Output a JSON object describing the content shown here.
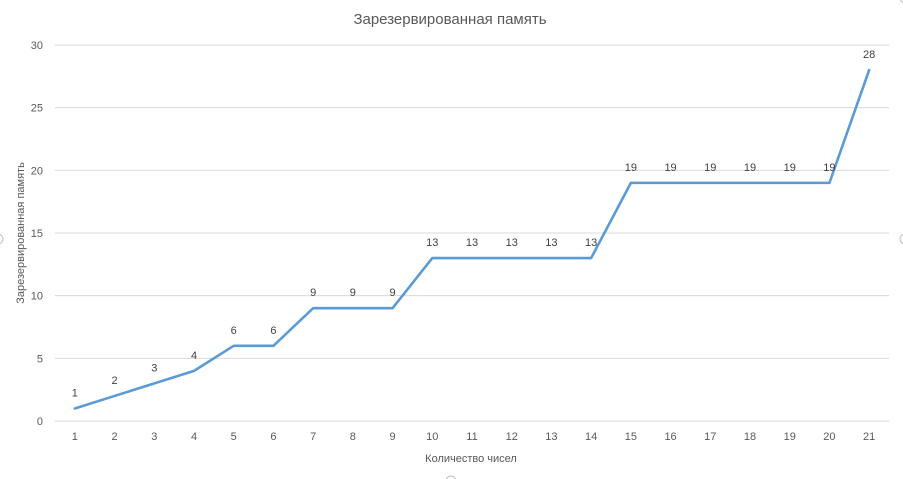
{
  "chart_data": {
    "type": "line",
    "title": "Зарезервированная память",
    "xlabel": "Количество чисел",
    "ylabel": "Зарезервированная память",
    "categories": [
      "1",
      "2",
      "3",
      "4",
      "5",
      "6",
      "7",
      "8",
      "9",
      "10",
      "11",
      "12",
      "13",
      "14",
      "15",
      "16",
      "17",
      "18",
      "19",
      "20",
      "21"
    ],
    "series": [
      {
        "name": "Зарезервированная память",
        "values": [
          1,
          2,
          3,
          4,
          6,
          6,
          9,
          9,
          9,
          13,
          13,
          13,
          13,
          13,
          19,
          19,
          19,
          19,
          19,
          19,
          28
        ],
        "color": "#5b9bd5"
      }
    ],
    "ylim": [
      0,
      30
    ],
    "yticks": [
      "0",
      "5",
      "10",
      "15",
      "20",
      "25",
      "30"
    ],
    "grid": true,
    "data_labels": true
  }
}
